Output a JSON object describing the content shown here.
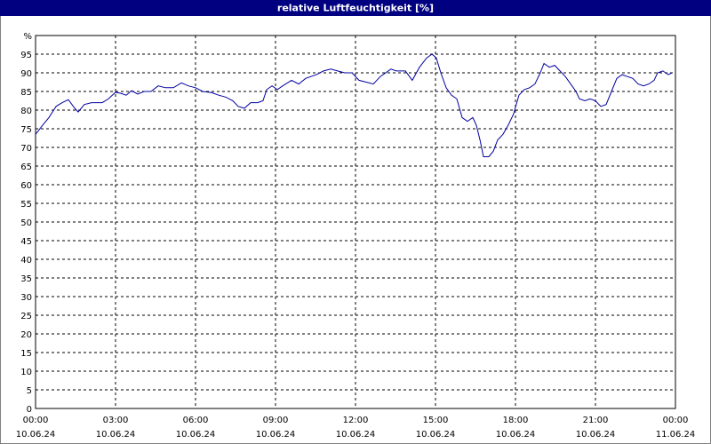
{
  "chart_data": {
    "type": "line",
    "title": "relative Luftfeuchtigkeit [%]",
    "xlim": [
      0,
      24
    ],
    "xticks": [
      {
        "value": 0,
        "label": "00:00",
        "date": "10.06.24"
      },
      {
        "value": 3,
        "label": "03:00",
        "date": "10.06.24"
      },
      {
        "value": 6,
        "label": "06:00",
        "date": "10.06.24"
      },
      {
        "value": 9,
        "label": "09:00",
        "date": "10.06.24"
      },
      {
        "value": 12,
        "label": "12:00",
        "date": "10.06.24"
      },
      {
        "value": 15,
        "label": "15:00",
        "date": "10.06.24"
      },
      {
        "value": 18,
        "label": "18:00",
        "date": "10.06.24"
      },
      {
        "value": 21,
        "label": "21:00",
        "date": "10.06.24"
      },
      {
        "value": 24,
        "label": "00:00",
        "date": "11.06.24"
      }
    ],
    "ylim": [
      0,
      100
    ],
    "yticks": [
      0,
      5,
      10,
      15,
      20,
      25,
      30,
      35,
      40,
      45,
      50,
      55,
      60,
      65,
      70,
      75,
      80,
      85,
      90,
      95,
      {
        "value": 100,
        "label": "%"
      }
    ],
    "grid": true,
    "x": [
      0,
      0.27,
      0.5,
      0.77,
      1,
      1.23,
      1.47,
      1.6,
      1.83,
      2.1,
      2.5,
      2.73,
      3,
      3.2,
      3.4,
      3.6,
      3.83,
      4.07,
      4.33,
      4.6,
      4.87,
      5.17,
      5.47,
      5.73,
      6,
      6.27,
      6.6,
      6.87,
      7.13,
      7.4,
      7.6,
      7.83,
      8.07,
      8.33,
      8.53,
      8.67,
      8.87,
      9.07,
      9.27,
      9.6,
      9.87,
      10.13,
      10.53,
      10.8,
      11.07,
      11.33,
      11.6,
      11.87,
      12.13,
      12.4,
      12.67,
      12.93,
      13.33,
      13.53,
      13.87,
      14.13,
      14.4,
      14.67,
      14.87,
      15.03,
      15.2,
      15.4,
      15.6,
      15.8,
      16,
      16.2,
      16.4,
      16.53,
      16.67,
      16.8,
      17,
      17.17,
      17.33,
      17.53,
      17.73,
      17.93,
      18.13,
      18.33,
      18.53,
      18.73,
      18.93,
      19.07,
      19.27,
      19.47,
      19.67,
      19.87,
      20.07,
      20.27,
      20.4,
      20.6,
      20.8,
      21,
      21.2,
      21.4,
      21.6,
      21.8,
      22,
      22.2,
      22.4,
      22.6,
      22.8,
      23,
      23.2,
      23.33,
      23.53,
      23.73,
      23.87
    ],
    "series": [
      {
        "color": "#0000a0",
        "values": [
          73.5,
          76,
          78,
          81,
          82,
          82.8,
          80.5,
          79.5,
          81.5,
          82,
          82,
          83,
          84.8,
          84.5,
          84,
          85.2,
          84.3,
          85,
          85,
          86.5,
          86,
          86,
          87.3,
          86.5,
          86,
          85,
          84.7,
          84,
          83.5,
          82.5,
          81,
          80.5,
          82,
          82,
          82.5,
          85.5,
          86.5,
          85.5,
          86.5,
          88,
          87,
          88.5,
          89.5,
          90.5,
          91,
          90.5,
          90,
          90,
          88,
          87.5,
          87,
          89,
          91,
          90.5,
          90.5,
          88,
          91.5,
          94,
          95,
          94,
          90,
          86,
          84,
          83,
          78,
          77,
          78,
          76,
          72,
          67.5,
          67.5,
          69,
          72,
          73.5,
          76,
          79,
          84,
          85.5,
          86,
          87,
          90,
          92.5,
          91.5,
          92,
          90.5,
          89,
          87,
          85,
          83,
          82.5,
          83,
          82.5,
          81,
          81.5,
          85,
          88.5,
          89.5,
          89,
          88.5,
          87,
          86.5,
          87,
          88,
          90,
          90.5,
          89.5,
          90
        ]
      }
    ]
  }
}
